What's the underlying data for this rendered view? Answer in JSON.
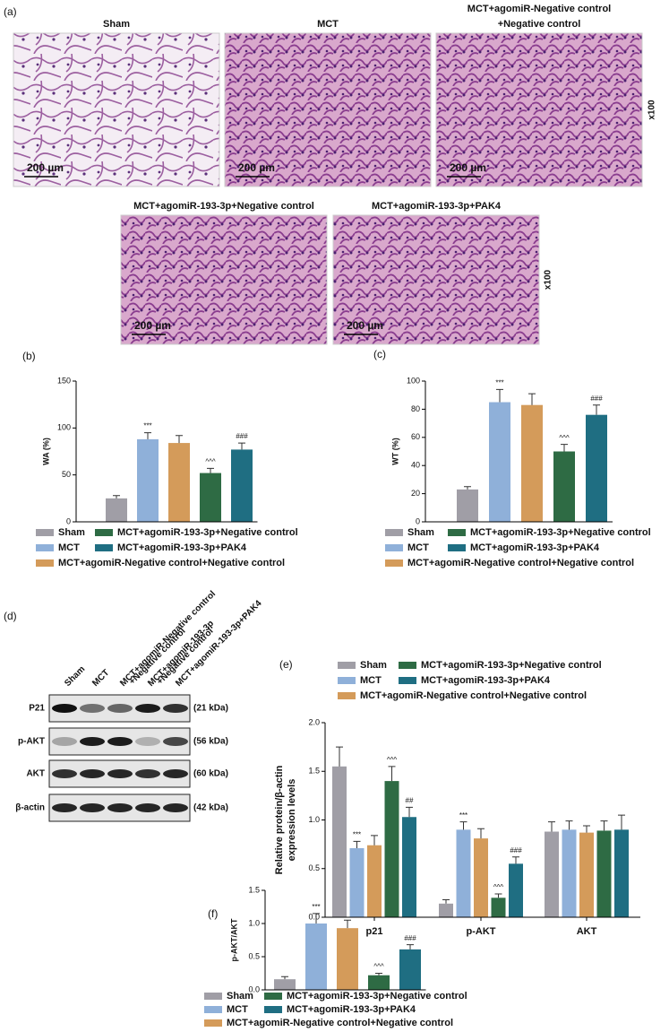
{
  "figure": {
    "panel_a": {
      "label": "(a)",
      "rows": [
        {
          "images": [
            {
              "title": [
                "Sham"
              ],
              "scale": "200 µm"
            },
            {
              "title": [
                "MCT"
              ],
              "scale": "200 µm"
            },
            {
              "title": [
                "MCT+agomiR-Negative control",
                "+Negative control"
              ],
              "scale": "200 µm"
            }
          ],
          "magnification": "x100"
        },
        {
          "images": [
            {
              "title": [
                "MCT+agomiR-193-3p+Negative control"
              ],
              "scale": "200 µm"
            },
            {
              "title": [
                "MCT+agomiR-193-3p+PAK4"
              ],
              "scale": "200 µm"
            }
          ],
          "magnification": "x100"
        }
      ]
    },
    "panel_d": {
      "label": "(d)",
      "lanes": [
        [
          "Sham"
        ],
        [
          "MCT"
        ],
        [
          "MCT+agomiR-Negative control",
          "+Negative control"
        ],
        [
          "MCT+agomiR-193-3p",
          "+Negative control"
        ],
        [
          "MCT+agomiR-193-3p+PAK4"
        ]
      ],
      "bands": [
        {
          "name": "P21",
          "size": "(21 kDa)"
        },
        {
          "name": "p-AKT",
          "size": "(56 kDa)"
        },
        {
          "name": "AKT",
          "size": "(60 kDa)"
        },
        {
          "name": "β-actin",
          "size": "(42 kDa)"
        }
      ]
    }
  },
  "chart_data": [
    {
      "type": "bar",
      "panel_label": "(b)",
      "ylabel": "WA (%)",
      "categories": [
        "Sham",
        "MCT",
        "MCT+agomiR-Negative control+Negative control",
        "MCT+agomiR-193-3p+Negative control",
        "MCT+agomiR-193-3p+PAK4"
      ],
      "colors": [
        "#a09ea6",
        "#8fb0d9",
        "#d49b5a",
        "#2e6b44",
        "#1f6e82"
      ],
      "values": [
        25,
        88,
        84,
        52,
        77
      ],
      "errors": [
        3,
        7,
        8,
        5,
        7
      ],
      "annotations": [
        null,
        "***",
        null,
        "^^^",
        "###"
      ],
      "ylim": [
        0,
        150
      ],
      "yticks": [
        0,
        50,
        100,
        150
      ]
    },
    {
      "type": "bar",
      "panel_label": "(c)",
      "ylabel": "WT (%)",
      "categories": [
        "Sham",
        "MCT",
        "MCT+agomiR-Negative control+Negative control",
        "MCT+agomiR-193-3p+Negative control",
        "MCT+agomiR-193-3p+PAK4"
      ],
      "colors": [
        "#a09ea6",
        "#8fb0d9",
        "#d49b5a",
        "#2e6b44",
        "#1f6e82"
      ],
      "values": [
        23,
        85,
        83,
        50,
        76
      ],
      "errors": [
        2,
        9,
        8,
        5,
        7
      ],
      "annotations": [
        null,
        "***",
        null,
        "^^^",
        "###"
      ],
      "ylim": [
        0,
        100
      ],
      "yticks": [
        0,
        20,
        40,
        60,
        80,
        100
      ]
    },
    {
      "type": "grouped_bar",
      "panel_label": "(e)",
      "ylabel": [
        "Relative protein/β-actin",
        "expression levels"
      ],
      "categories": [
        "p21",
        "p-AKT",
        "AKT"
      ],
      "series": [
        {
          "name": "Sham",
          "color": "#a09ea6",
          "values": [
            1.55,
            0.14,
            0.88
          ],
          "errors": [
            0.2,
            0.04,
            0.1
          ],
          "annotations": [
            null,
            null,
            null
          ]
        },
        {
          "name": "MCT",
          "color": "#8fb0d9",
          "values": [
            0.71,
            0.9,
            0.9
          ],
          "errors": [
            0.07,
            0.08,
            0.09
          ],
          "annotations": [
            "***",
            "***",
            null
          ]
        },
        {
          "name": "MCT+agomiR-Negative control+Negative control",
          "color": "#d49b5a",
          "values": [
            0.74,
            0.81,
            0.87
          ],
          "errors": [
            0.1,
            0.1,
            0.07
          ],
          "annotations": [
            null,
            null,
            null
          ]
        },
        {
          "name": "MCT+agomiR-193-3p+Negative control",
          "color": "#2e6b44",
          "values": [
            1.4,
            0.2,
            0.89
          ],
          "errors": [
            0.15,
            0.04,
            0.1
          ],
          "annotations": [
            "^^^",
            "^^^",
            null
          ]
        },
        {
          "name": "MCT+agomiR-193-3p+PAK4",
          "color": "#1f6e82",
          "values": [
            1.03,
            0.55,
            0.9
          ],
          "errors": [
            0.1,
            0.07,
            0.15
          ],
          "annotations": [
            "##",
            "###",
            null
          ]
        }
      ],
      "ylim": [
        0,
        2
      ],
      "yticks": [
        {
          "value": 0,
          "label": "0.0"
        },
        0.5,
        {
          "value": 1,
          "label": "1.0"
        },
        1.5,
        {
          "value": 2,
          "label": "2.0"
        }
      ]
    },
    {
      "type": "bar",
      "panel_label": "(f)",
      "ylabel": "p-AKT/AKT",
      "categories": [
        "Sham",
        "MCT",
        "MCT+agomiR-Negative control+Negative control",
        "MCT+agomiR-193-3p+Negative control",
        "MCT+agomiR-193-3p+PAK4"
      ],
      "colors": [
        "#a09ea6",
        "#8fb0d9",
        "#d49b5a",
        "#2e6b44",
        "#1f6e82"
      ],
      "values": [
        0.16,
        1.0,
        0.93,
        0.22,
        0.61
      ],
      "errors": [
        0.04,
        0.15,
        0.12,
        0.03,
        0.07
      ],
      "annotations": [
        null,
        "***",
        null,
        "^^^",
        "###"
      ],
      "ylim": [
        0,
        1.5
      ],
      "yticks": [
        {
          "value": 0,
          "label": "0.0"
        },
        0.5,
        {
          "value": 1,
          "label": "1.0"
        },
        1.5
      ]
    }
  ]
}
